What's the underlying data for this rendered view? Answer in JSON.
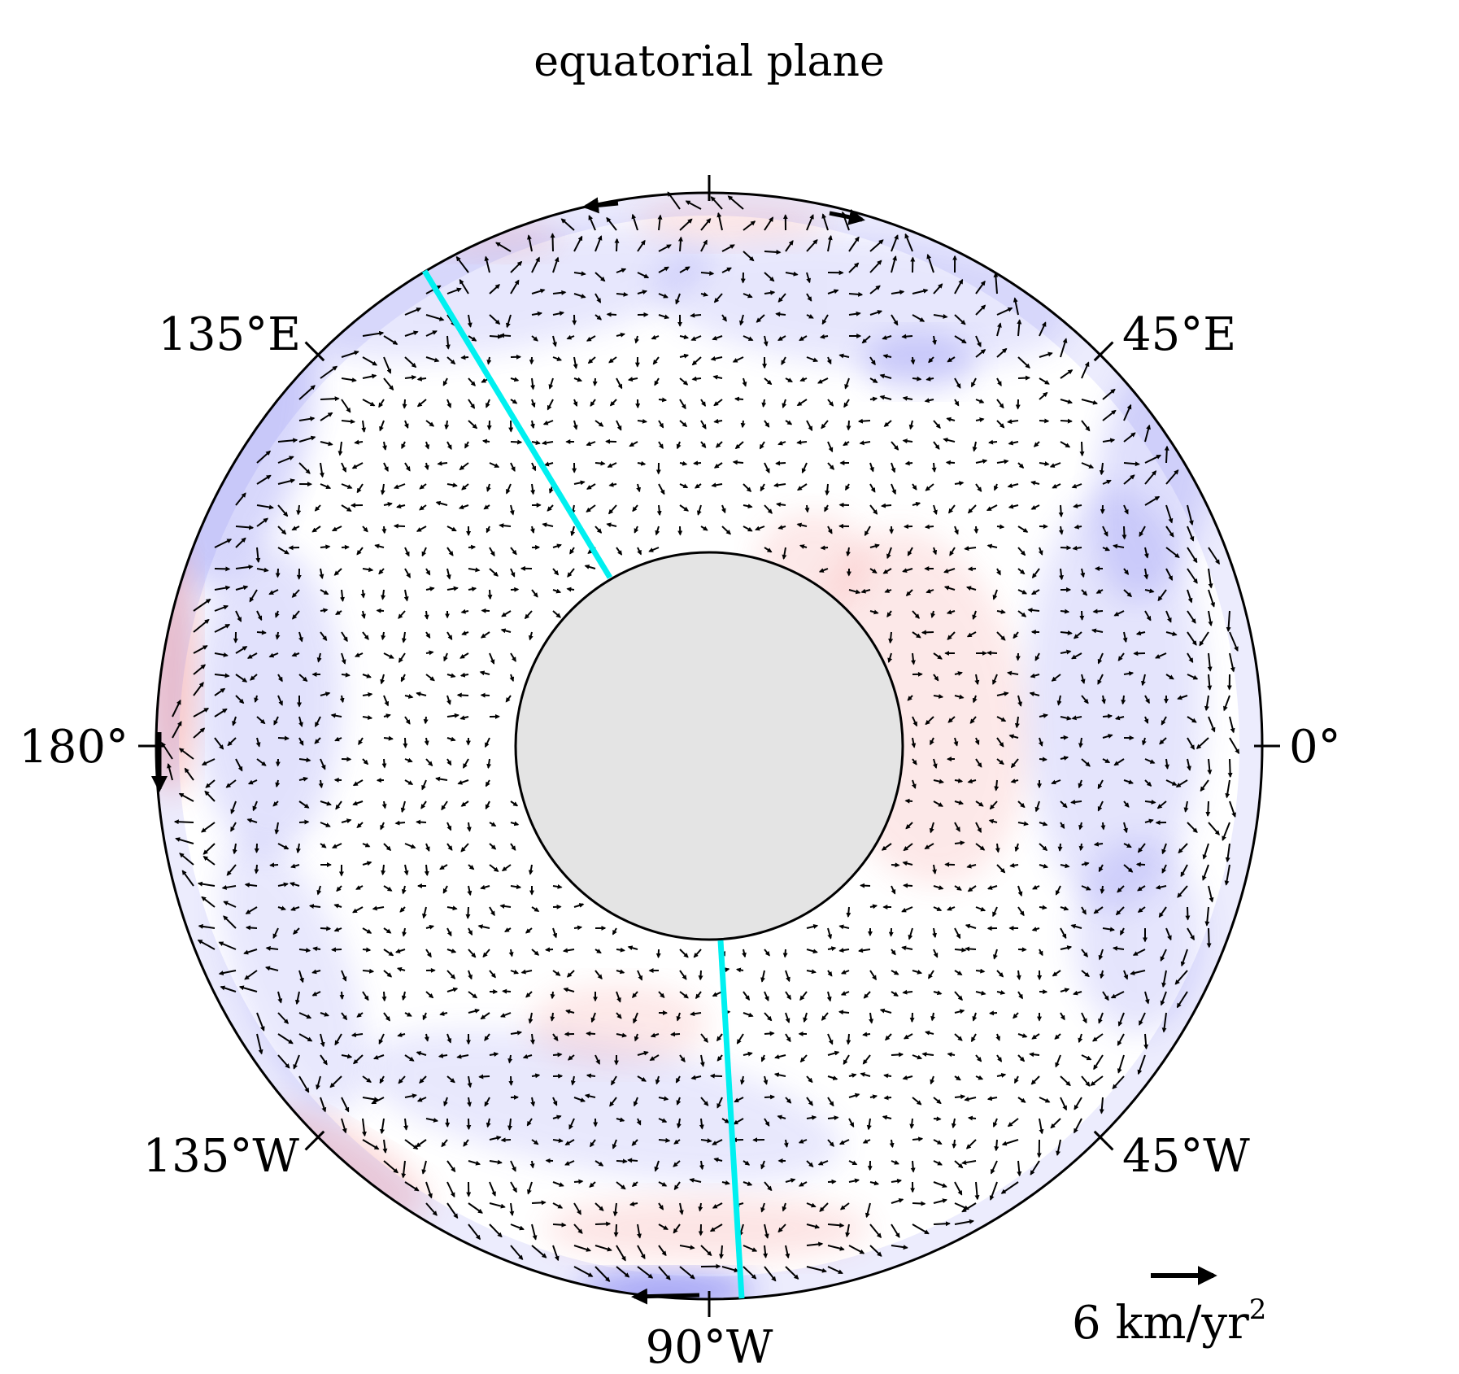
{
  "title": "equatorial plane",
  "longitude_labels": {
    "lon_0": "0°",
    "lon_45E": "45°E",
    "lon_135E": "135°E",
    "lon_180": "180°",
    "lon_135W": "135°W",
    "lon_90W": "90°W",
    "lon_45W": "45°W"
  },
  "scale_arrow": {
    "label": "6 km/yr",
    "superscript": "2"
  },
  "colors": {
    "outline": "#000000",
    "inner_core_fill": "#e4e4e4",
    "cyan_line": "#00f0f0",
    "positive_tint": "#f06060",
    "negative_tint": "#6060f0",
    "arrow": "#000000"
  },
  "geometry_note_free": true
}
